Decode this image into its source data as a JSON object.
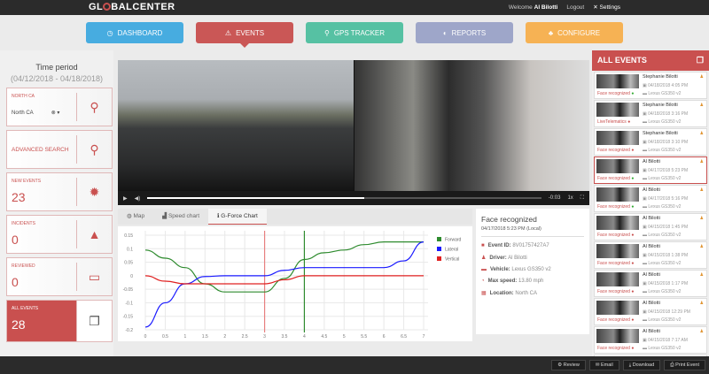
{
  "header": {
    "logo": "GLOBALCENTER",
    "welcome": "Welcome",
    "user": "Al Bilotti",
    "logout": "Logout",
    "settings": "Settings"
  },
  "nav": [
    {
      "label": "DASHBOARD",
      "color": "#3fa9e0"
    },
    {
      "label": "EVENTS",
      "color": "#c9504f"
    },
    {
      "label": "GPS TRACKER",
      "color": "#4fbfa0"
    },
    {
      "label": "REPORTS",
      "color": "#9aa3c8"
    },
    {
      "label": "CONFIGURE",
      "color": "#f7b04c"
    }
  ],
  "sidebar": {
    "time_title": "Time period",
    "time_range": "(04/12/2018 - 04/18/2018)",
    "region_label": "NORTH CA",
    "region_value": "North CA",
    "advanced": "ADVANCED SEARCH",
    "new_events": {
      "label": "NEW EVENTS",
      "value": "23"
    },
    "incidents": {
      "label": "INCIDENTS",
      "value": "0"
    },
    "reviewed": {
      "label": "REVIEWED",
      "value": "0"
    },
    "all": {
      "label": "ALL EVENTS",
      "value": "28"
    }
  },
  "video": {
    "time": "-0:03",
    "rate": "1x",
    "progress": 0.55
  },
  "tabs": [
    "Map",
    "Speed chart",
    "G-Force Chart"
  ],
  "info": {
    "title": "Face recognized",
    "datetime": "04/17/2018 5:23 PM (Local)",
    "event_id_label": "Event ID:",
    "event_id": "8V01757427A7",
    "driver_label": "Driver:",
    "driver": "Al Bilotti",
    "vehicle_label": "Vehicle:",
    "vehicle": "Lexus GS350 v2",
    "speed_label": "Max speed:",
    "speed": "13.80 mph",
    "location_label": "Location:",
    "location": "North CA"
  },
  "events": {
    "title": "ALL EVENTS",
    "items": [
      {
        "name": "Stephanie Bilotti",
        "date": "04/18/2018 4:05 PM",
        "vehicle": "Lexus GS350 v2",
        "type": "Face recognized"
      },
      {
        "name": "Stephanie Bilotti",
        "date": "04/18/2018 3:16 PM",
        "vehicle": "Lexus GS350 v2",
        "type": "LiveTelematics"
      },
      {
        "name": "Stephanie Bilotti",
        "date": "04/18/2018 3:10 PM",
        "vehicle": "Lexus GS350 v2",
        "type": "Face recognized"
      },
      {
        "name": "Al Bilotti",
        "date": "04/17/2018 5:23 PM",
        "vehicle": "Lexus GS350 v2",
        "type": "Face recognized"
      },
      {
        "name": "Al Bilotti",
        "date": "04/17/2018 5:16 PM",
        "vehicle": "Lexus GS350 v2",
        "type": "Face recognized"
      },
      {
        "name": "Al Bilotti",
        "date": "04/15/2018 1:45 PM",
        "vehicle": "Lexus GS350 v2",
        "type": "Face recognized"
      },
      {
        "name": "Al Bilotti",
        "date": "04/15/2018 1:38 PM",
        "vehicle": "Lexus GS350 v2",
        "type": "Face recognized"
      },
      {
        "name": "Al Bilotti",
        "date": "04/15/2018 1:17 PM",
        "vehicle": "Lexus GS350 v2",
        "type": "Face recognized"
      },
      {
        "name": "Al Bilotti",
        "date": "04/15/2018 12:29 PM",
        "vehicle": "Lexus GS350 v2",
        "type": "Face recognized"
      },
      {
        "name": "Al Bilotti",
        "date": "04/15/2018 7:17 AM",
        "vehicle": "Lexus GS350 v2",
        "type": "Face recognized"
      },
      {
        "name": "Al Bilotti",
        "date": "",
        "vehicle": "",
        "type": ""
      }
    ]
  },
  "footer": {
    "review": "Review",
    "email": "Email",
    "download": "Download",
    "print": "Print Event"
  },
  "chart_data": {
    "type": "line",
    "x": [
      0,
      0.5,
      1,
      1.5,
      2,
      2.5,
      3,
      3.5,
      4,
      4.5,
      5,
      5.5,
      6,
      6.5,
      7
    ],
    "x_ticks": [
      "0",
      "0.5",
      "1",
      "1.5",
      "2",
      "2.5",
      "3",
      "3.5",
      "4",
      "4.5",
      "5",
      "5.5",
      "6",
      "6.5",
      "7"
    ],
    "y_ticks": [
      "0.15",
      "0.1",
      "0.05",
      "0",
      "-0.05",
      "-0.1",
      "-0.15",
      "-0.2"
    ],
    "ylim": [
      -0.2,
      0.15
    ],
    "xlim": [
      0,
      7
    ],
    "grid": true,
    "legend": "right",
    "series": [
      {
        "name": "Forward",
        "color": "#2e8b2e",
        "values": [
          0.095,
          0.065,
          0.03,
          -0.03,
          -0.06,
          -0.06,
          -0.06,
          -0.01,
          0.06,
          0.085,
          0.095,
          0.115,
          0.125,
          0.125,
          0.125
        ]
      },
      {
        "name": "Lateral",
        "color": "#1a1aff",
        "values": [
          -0.19,
          -0.1,
          -0.03,
          -0.003,
          0,
          0,
          0,
          0.02,
          0.03,
          0.03,
          0.03,
          0.03,
          0.03,
          0.055,
          0.125
        ]
      },
      {
        "name": "Vertical",
        "color": "#e02020",
        "values": [
          0,
          -0.02,
          -0.03,
          -0.03,
          -0.03,
          -0.03,
          -0.03,
          -0.015,
          0,
          0,
          0,
          0,
          0,
          0,
          0
        ]
      }
    ],
    "markers": [
      {
        "x": 3,
        "color": "#e88080"
      },
      {
        "x": 4,
        "color": "#2e8b2e"
      }
    ]
  }
}
